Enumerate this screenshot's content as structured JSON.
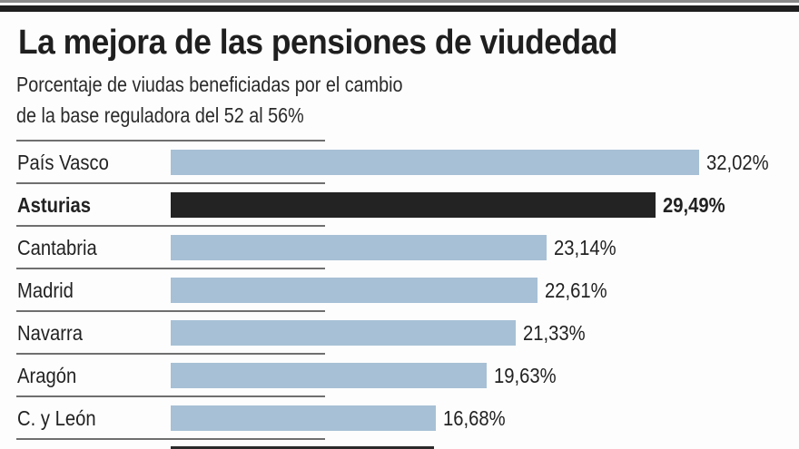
{
  "chart_data": {
    "type": "bar",
    "orientation": "horizontal",
    "title": "La mejora de las pensiones de viudedad",
    "subtitle_lines": [
      "Porcentaje de viudas beneficiadas por el cambio",
      "de la base reguladora del 52 al 56%"
    ],
    "categories": [
      "País Vasco",
      "Asturias",
      "Cantabria",
      "Madrid",
      "Navarra",
      "Aragón",
      "C. y León"
    ],
    "values": [
      32.02,
      29.49,
      23.14,
      22.61,
      21.33,
      19.63,
      16.68
    ],
    "labels": [
      "32,02%",
      "29,49%",
      "23,14%",
      "22,61%",
      "21,33%",
      "19,63%",
      "16,68%"
    ],
    "highlight": "Asturias",
    "unit": "%",
    "xlabel": "",
    "ylabel": "",
    "grid": false,
    "legend": "none"
  },
  "colors": {
    "bar": "#a7c0d5",
    "highlight": "#232323",
    "text": "#222222"
  }
}
